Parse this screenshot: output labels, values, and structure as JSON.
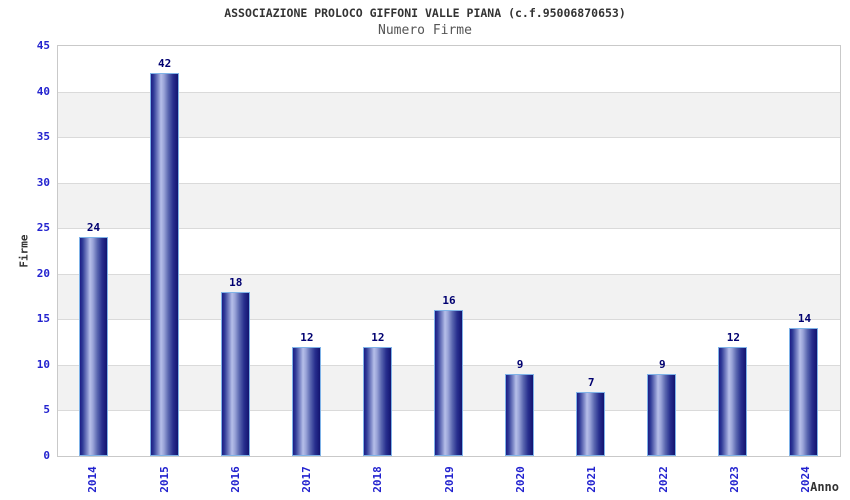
{
  "chart_data": {
    "type": "bar",
    "title": "ASSOCIAZIONE PROLOCO GIFFONI VALLE PIANA (c.f.95006870653)",
    "subtitle": "Numero Firme",
    "xlabel": "Anno",
    "ylabel": "Firme",
    "categories": [
      "2014",
      "2015",
      "2016",
      "2017",
      "2018",
      "2019",
      "2020",
      "2021",
      "2022",
      "2023",
      "2024"
    ],
    "values": [
      24,
      42,
      18,
      12,
      12,
      16,
      9,
      7,
      9,
      12,
      14
    ],
    "ylim": [
      0,
      45
    ],
    "ytick_step": 5,
    "yticks": [
      0,
      5,
      10,
      15,
      20,
      25,
      30,
      35,
      40,
      45
    ],
    "grid": "horizontal-bands",
    "legend": "none",
    "colors": {
      "tick_label": "#2323cf",
      "value_label": "#000070",
      "bar_dark": "#1c1c86",
      "bar_light": "#b6bee9",
      "bar_border": "#7fb3e8",
      "band_alt": "#f2f2f2",
      "gridline": "#dadada",
      "plot_border": "#c9c9c9",
      "title": "#333333",
      "subtitle": "#555555",
      "axis_label": "#333333"
    }
  }
}
